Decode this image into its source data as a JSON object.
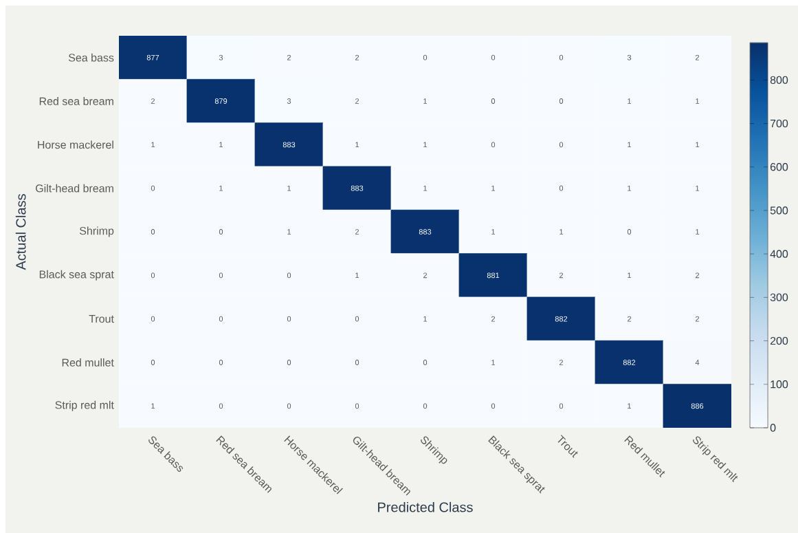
{
  "chart_data": {
    "type": "heatmap",
    "xlabel": "Predicted Class",
    "ylabel": "Actual Class",
    "categories": [
      "Sea bass",
      "Red sea bream",
      "Horse mackerel",
      "Gilt-head bream",
      "Shrimp",
      "Black sea sprat",
      "Trout",
      "Red mullet",
      "Strip red mlt"
    ],
    "y_categories": [
      "Sea bass",
      "Red sea bream",
      "Horse mackerel",
      "Gilt-head bream",
      "Shrimp",
      "Black sea sprat",
      "Trout",
      "Red mullet",
      "Strip red mlt"
    ],
    "cells": [
      [
        877,
        3,
        2,
        2,
        0,
        0,
        0,
        3,
        2
      ],
      [
        2,
        879,
        3,
        2,
        1,
        0,
        0,
        1,
        1
      ],
      [
        1,
        1,
        883,
        1,
        1,
        0,
        0,
        1,
        1
      ],
      [
        0,
        1,
        1,
        883,
        1,
        1,
        0,
        1,
        1
      ],
      [
        0,
        0,
        1,
        2,
        883,
        1,
        1,
        0,
        1
      ],
      [
        0,
        0,
        0,
        1,
        2,
        881,
        2,
        1,
        2
      ],
      [
        0,
        0,
        0,
        0,
        1,
        2,
        882,
        2,
        2
      ],
      [
        0,
        0,
        0,
        0,
        0,
        1,
        2,
        882,
        4
      ],
      [
        1,
        0,
        0,
        0,
        0,
        0,
        0,
        1,
        886
      ]
    ],
    "data_labels": true,
    "clim": [
      0,
      886
    ],
    "cticks": [
      0,
      100,
      200,
      300,
      400,
      500,
      600,
      700,
      800
    ]
  }
}
